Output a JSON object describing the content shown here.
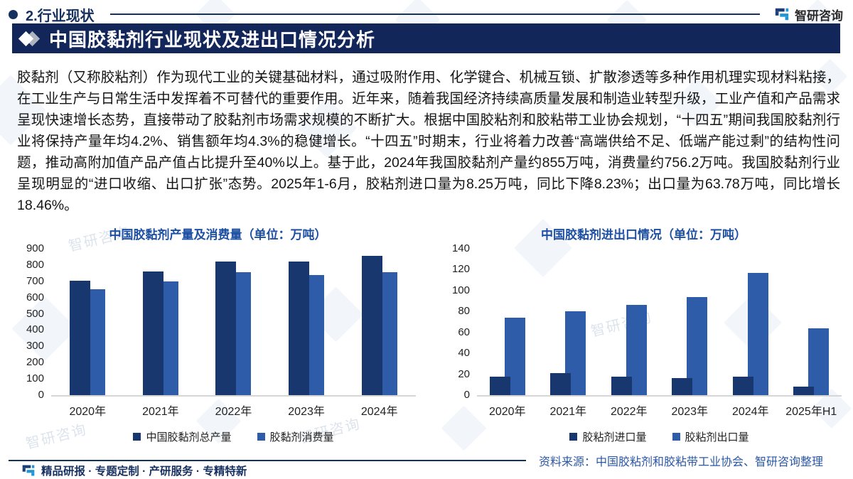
{
  "header": {
    "section_title": "2.行业现状",
    "brand_name": "智研咨询"
  },
  "banner": {
    "title": "中国胶黏剂行业现状及进出口情况分析"
  },
  "paragraph": "胶黏剂（又称胶粘剂）作为现代工业的关键基础材料，通过吸附作用、化学键合、机械互锁、扩散渗透等多种作用机理实现材料粘接，在工业生产与日常生活中发挥着不可替代的重要作用。近年来，随着我国经济持续高质量发展和制造业转型升级，工业产值和产品需求呈现快速增长态势，直接带动了胶黏剂市场需求规模的不断扩大。根据中国胶粘剂和胶粘带工业协会规划，“十四五”期间我国胶黏剂行业将保持产量年均4.2%、销售额年均4.3%的稳健增长。“十四五”时期末，行业将着力改善“高端供给不足、低端产能过剩”的结构性问题，推动高附加值产品产值占比提升至40%以上。基于此，2024年我国胶黏剂产量约855万吨，消费量约756.2万吨。我国胶黏剂行业呈现明显的“进口收缩、出口扩张”态势。2025年1-6月，胶粘剂进口量为8.25万吨，同比下降8.23%；出口量为63.78万吨，同比增长18.46%。",
  "source_note": "资料来源：中国胶粘剂和胶粘带工业协会、智研咨询整理",
  "footer": {
    "tagline": "精品研报 · 专题定制 · 产研服务 · 专精特新"
  },
  "branding": {
    "watermark_text": "智研咨询"
  },
  "colors": {
    "navy": "#16305F",
    "banner_bg": "#12265A",
    "bar_dark": "#17376E",
    "bar_light": "#2F5CA8",
    "chart_title_blue": "#1D4FA3",
    "source_blue": "#2B57A7",
    "logo_bright_blue": "#2196D6"
  },
  "chart_data": [
    {
      "type": "bar",
      "title": "中国胶黏剂产量及消费量（单位：万吨）",
      "categories": [
        "2020年",
        "2021年",
        "2022年",
        "2023年",
        "2024年"
      ],
      "series": [
        {
          "name": "中国胶黏剂总产量",
          "color": "#17376E",
          "values": [
            705,
            760,
            820,
            820,
            855
          ]
        },
        {
          "name": "胶黏剂消费量",
          "color": "#2F5CA8",
          "values": [
            650,
            700,
            755,
            740,
            756.2
          ]
        }
      ],
      "ylim": [
        0,
        900
      ],
      "ytick_step": 100,
      "grid": false,
      "legend_position": "bottom"
    },
    {
      "type": "bar",
      "title": "中国胶黏剂进出口情况（单位：万吨）",
      "categories": [
        "2020年",
        "2021年",
        "2022年",
        "2023年",
        "2024年",
        "2025年H1"
      ],
      "series": [
        {
          "name": "胶粘剂进口量",
          "color": "#17376E",
          "values": [
            18,
            21,
            18,
            16.5,
            17.5,
            8.25
          ]
        },
        {
          "name": "胶粘剂出口量",
          "color": "#2F5CA8",
          "values": [
            74,
            80,
            86,
            94,
            117,
            63.78
          ]
        }
      ],
      "ylim": [
        0,
        140
      ],
      "ytick_step": 20,
      "grid": false,
      "legend_position": "bottom"
    }
  ]
}
